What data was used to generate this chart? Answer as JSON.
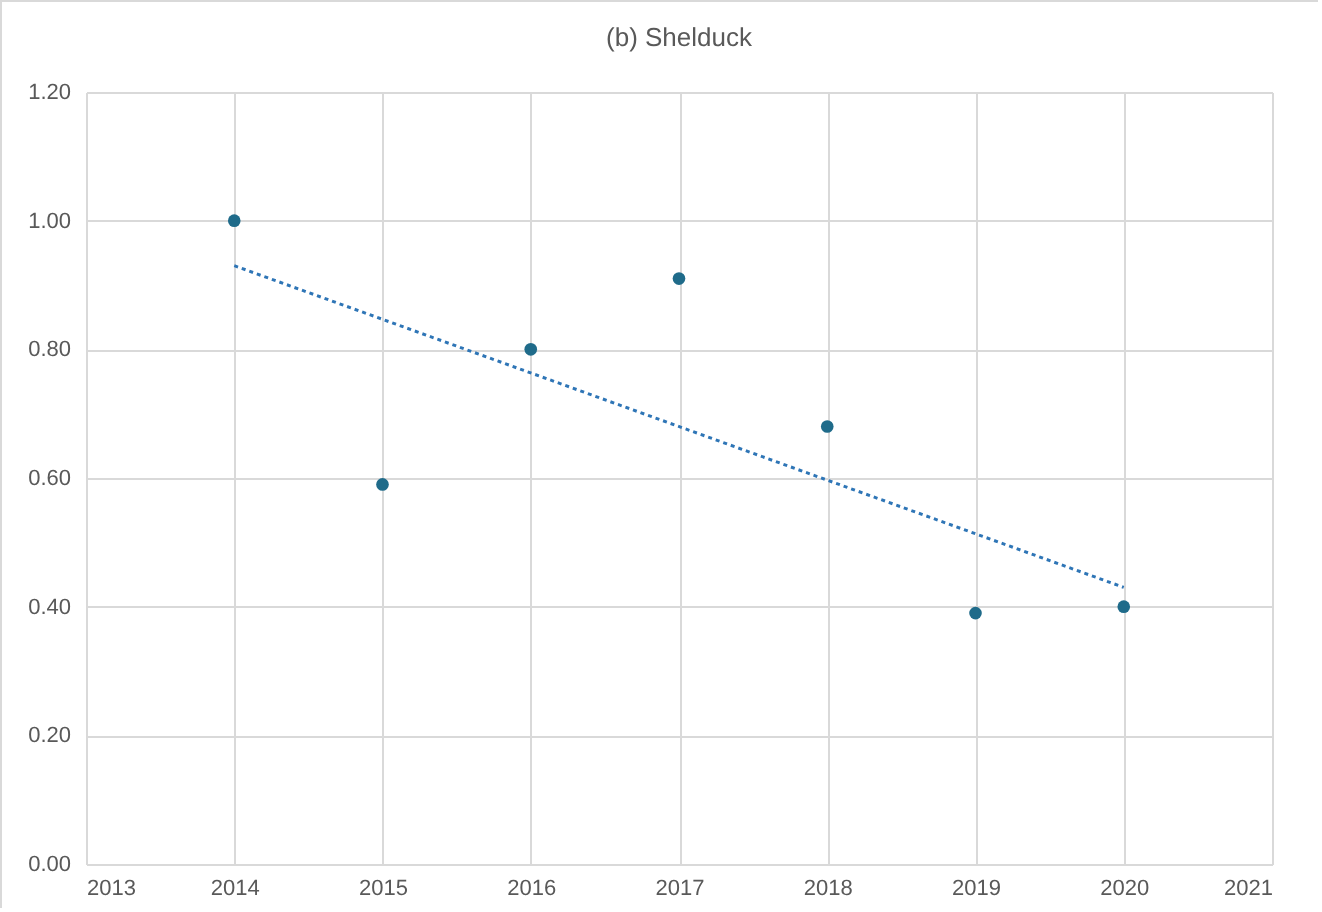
{
  "chart_data": {
    "type": "scatter",
    "title": "(b) Shelduck",
    "xlim": [
      2013,
      2021
    ],
    "xticks": [
      2013,
      2014,
      2015,
      2016,
      2017,
      2018,
      2019,
      2020,
      2021
    ],
    "ylim": [
      0,
      1.2
    ],
    "yticks": [
      {
        "value": 0,
        "label": "0.00"
      },
      {
        "value": 0.2,
        "label": "0.20"
      },
      {
        "value": 0.4,
        "label": "0.40"
      },
      {
        "value": 0.6,
        "label": "0.60"
      },
      {
        "value": 0.8,
        "label": "0.80"
      },
      {
        "value": 1,
        "label": "1.00"
      },
      {
        "value": 1.2,
        "label": "1.20"
      }
    ],
    "grid": true,
    "series": [
      {
        "marker": "circle",
        "color": "#1f6b8a",
        "x": [
          2014,
          2015,
          2016,
          2017,
          2018,
          2019,
          2020
        ],
        "values": [
          1.0,
          0.59,
          0.8,
          0.91,
          0.68,
          0.39,
          0.4
        ]
      },
      {
        "type": "line",
        "marker": "none",
        "color": "#2e75b6",
        "line_style": "dotted",
        "x": [
          2014,
          2020
        ],
        "values": [
          0.93,
          0.43
        ]
      }
    ]
  }
}
